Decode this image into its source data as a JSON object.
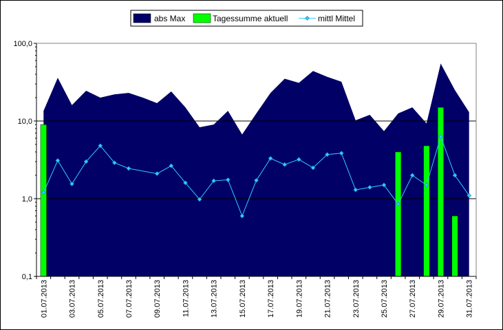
{
  "chart_data": {
    "type": "area",
    "y_scale": "log",
    "ylim": [
      0.1,
      100
    ],
    "y_ticks": [
      0.1,
      1,
      10,
      100
    ],
    "y_tick_labels": [
      "0,1",
      "1,0",
      "10,0",
      "100,0"
    ],
    "x_tick_labels": [
      "01.07.2013",
      "03.07.2013",
      "05.07.2013",
      "07.07.2013",
      "09.07.2013",
      "11.07.2013",
      "13.07.2013",
      "15.07.2013",
      "17.07.2013",
      "19.07.2013",
      "21.07.2013",
      "23.07.2013",
      "25.07.2013",
      "27.07.2013",
      "29.07.2013",
      "31.07.2013"
    ],
    "categories": [
      "01.07.2013",
      "02.07.2013",
      "03.07.2013",
      "04.07.2013",
      "05.07.2013",
      "06.07.2013",
      "07.07.2013",
      "08.07.2013",
      "09.07.2013",
      "10.07.2013",
      "11.07.2013",
      "12.07.2013",
      "13.07.2013",
      "14.07.2013",
      "15.07.2013",
      "16.07.2013",
      "17.07.2013",
      "18.07.2013",
      "19.07.2013",
      "20.07.2013",
      "21.07.2013",
      "22.07.2013",
      "23.07.2013",
      "24.07.2013",
      "25.07.2013",
      "26.07.2013",
      "27.07.2013",
      "28.07.2013",
      "29.07.2013",
      "30.07.2013",
      "31.07.2013"
    ],
    "grid": "horizontal-major",
    "legend_position": "top",
    "series": [
      {
        "name": "abs Max",
        "kind": "area",
        "color": "#000066",
        "values": [
          13.5,
          36,
          16,
          24.5,
          20,
          22,
          23,
          20,
          17,
          24,
          15,
          8.3,
          9,
          13.5,
          6.7,
          12.5,
          23,
          35,
          31,
          44,
          37,
          32,
          10.2,
          12,
          7.4,
          12.5,
          15,
          9.3,
          55,
          25,
          13
        ]
      },
      {
        "name": "Tagessumme aktuell",
        "kind": "bar",
        "color": "#00ff00",
        "values": [
          9,
          null,
          null,
          null,
          null,
          null,
          null,
          null,
          null,
          null,
          null,
          null,
          null,
          null,
          null,
          null,
          null,
          null,
          null,
          null,
          null,
          null,
          null,
          null,
          null,
          4,
          null,
          4.8,
          15,
          0.6,
          null
        ]
      },
      {
        "name": "mittl Mittel",
        "kind": "line",
        "color": "#33ccff",
        "values": [
          1.2,
          3.1,
          1.55,
          3.0,
          4.8,
          2.9,
          2.45,
          null,
          2.1,
          2.65,
          1.6,
          0.98,
          1.7,
          1.75,
          0.6,
          1.72,
          3.3,
          2.75,
          3.2,
          2.5,
          3.7,
          3.85,
          1.3,
          1.4,
          1.5,
          0.85,
          2.0,
          1.5,
          6.3,
          2.0,
          1.1
        ]
      }
    ]
  }
}
